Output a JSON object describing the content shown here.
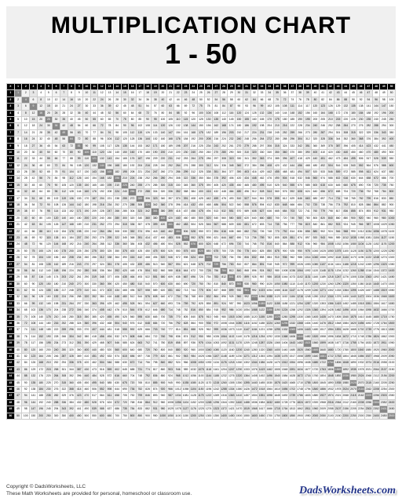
{
  "title": {
    "line1": "MULTIPLICATION CHART",
    "line2": "1 - 50",
    "bg_color": "#f0f0f0",
    "text_color": "#000000",
    "line1_fontsize": 30,
    "line2_fontsize": 36,
    "font_weight": 900
  },
  "chart": {
    "type": "table",
    "size": 50,
    "corner_label": "X",
    "col_headers_from": 1,
    "col_headers_to": 50,
    "row_headers_from": 1,
    "row_headers_to": 50,
    "cell_formula": "row * col",
    "header_bg": "#000000",
    "header_fg": "#ffffff",
    "diagonal_bg": "#888888",
    "diagonal_fg": "#ffffff",
    "shade1_bg": "#f2f2f2",
    "shade2_bg": "#e6e6e6",
    "border_color": "#cccccc",
    "cell_fontsize": 3.4,
    "min_value": 1,
    "max_value": 2500
  },
  "footer": {
    "copyright_line1": "Copyright © DadsWorksheets, LLC",
    "copyright_line2": "These Math Worksheets are provided for personal, homeschool or classroom use.",
    "brand": "DadsWorksheets.com",
    "brand_color": "#223388"
  }
}
